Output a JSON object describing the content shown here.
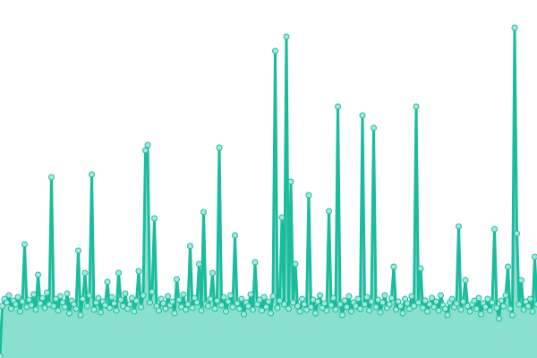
{
  "chart_data": {
    "type": "area",
    "title": "",
    "xlabel": "",
    "ylabel": "",
    "ylim": [
      0,
      400
    ],
    "grid": false,
    "legend": "none",
    "colors": {
      "line": "#1abc9c",
      "fill": "#8ae0cf",
      "marker_fill": "#a6e9dc",
      "marker_stroke": "#1abc9c"
    },
    "series": [
      {
        "values": [
          2,
          58,
          66,
          62,
          70,
          55,
          64,
          60,
          68,
          52,
          63,
          127,
          57,
          65,
          59,
          71,
          54,
          93,
          61,
          67,
          56,
          73,
          60,
          202,
          58,
          66,
          53,
          69,
          62,
          57,
          72,
          50,
          64,
          60,
          55,
          120,
          48,
          66,
          95,
          58,
          70,
          205,
          54,
          62,
          67,
          51,
          63,
          59,
          85,
          56,
          68,
          61,
          53,
          95,
          65,
          58,
          72,
          55,
          60,
          67,
          52,
          64,
          97,
          57,
          70,
          232,
          238,
          62,
          74,
          156,
          58,
          53,
          66,
          61,
          55,
          69,
          59,
          63,
          50,
          88,
          65,
          57,
          71,
          54,
          60,
          125,
          56,
          67,
          62,
          105,
          53,
          163,
          60,
          58,
          66,
          95,
          55,
          64,
          235,
          59,
          68,
          52,
          63,
          70,
          57,
          137,
          61,
          55,
          66,
          49,
          62,
          58,
          71,
          54,
          107,
          60,
          65,
          53,
          68,
          57,
          63,
          50,
          69,
          343,
          56,
          64,
          157,
          60,
          359,
          55,
          197,
          62,
          105,
          58,
          52,
          66,
          60,
          54,
          182,
          57,
          65,
          50,
          63,
          70,
          56,
          61,
          53,
          164,
          59,
          67,
          54,
          281,
          60,
          48,
          64,
          57,
          69,
          52,
          62,
          58,
          66,
          55,
          271,
          60,
          68,
          53,
          63,
          257,
          57,
          65,
          51,
          62,
          70,
          56,
          60,
          67,
          102,
          54,
          63,
          58,
          50,
          66,
          61,
          55,
          69,
          58,
          281,
          62,
          100,
          56,
          64,
          52,
          60,
          67,
          57,
          63,
          53,
          70,
          59,
          55,
          48,
          62,
          66,
          57,
          61,
          147,
          54,
          63,
          87,
          58,
          52,
          60,
          64,
          55,
          67,
          49,
          61,
          57,
          66,
          53,
          62,
          144,
          56,
          44,
          64,
          58,
          70,
          102,
          55,
          48,
          369,
          139,
          60,
          87,
          54,
          63,
          58,
          66,
          52,
          113,
          60
        ]
      }
    ]
  }
}
